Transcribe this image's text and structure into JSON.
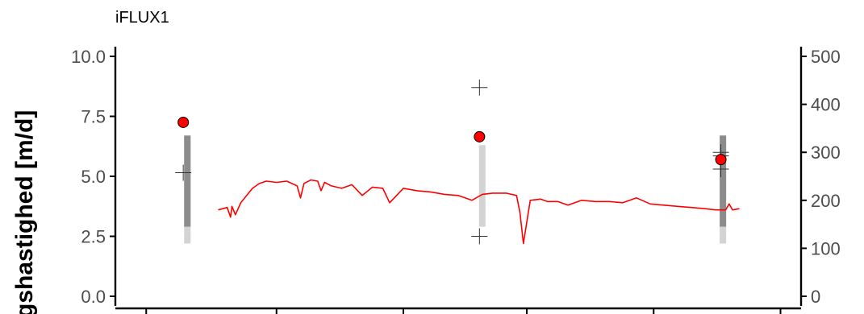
{
  "chart_data": {
    "type": "line",
    "title": "iFLUX1",
    "ylabel": "gshastighed [m/d]",
    "ylim": [
      0,
      10
    ],
    "yticks": [
      "0.0",
      "2.5",
      "5.0",
      "7.5",
      "10.0"
    ],
    "y2lim": [
      0,
      500
    ],
    "y2ticks": [
      "0",
      "100",
      "200",
      "300",
      "400",
      "500"
    ],
    "xlim": [
      0,
      1
    ],
    "colors": {
      "line": "#ff0000",
      "point": "#ff0000",
      "bar_light": "#d3d3d3",
      "bar_dark": "#8c8c8c",
      "axis": "#000000"
    },
    "series": [
      {
        "type": "line",
        "x": [
          0.15,
          0.163,
          0.168,
          0.17,
          0.175,
          0.183,
          0.2,
          0.21,
          0.22,
          0.235,
          0.25,
          0.265,
          0.27,
          0.275,
          0.285,
          0.295,
          0.3,
          0.305,
          0.315,
          0.33,
          0.345,
          0.36,
          0.375,
          0.39,
          0.4,
          0.42,
          0.44,
          0.46,
          0.48,
          0.5,
          0.52,
          0.535,
          0.55,
          0.57,
          0.585,
          0.59,
          0.595,
          0.605,
          0.62,
          0.63,
          0.645,
          0.66,
          0.68,
          0.7,
          0.72,
          0.74,
          0.76,
          0.78,
          0.8,
          0.82,
          0.84,
          0.86,
          0.875,
          0.89,
          0.895,
          0.9,
          0.91
        ],
        "y": [
          3.6,
          3.7,
          3.3,
          3.75,
          3.4,
          3.9,
          4.5,
          4.7,
          4.8,
          4.75,
          4.8,
          4.6,
          4.1,
          4.7,
          4.85,
          4.8,
          4.4,
          4.75,
          4.6,
          4.5,
          4.65,
          4.2,
          4.55,
          4.5,
          3.9,
          4.5,
          4.4,
          4.35,
          4.25,
          4.2,
          4.0,
          4.25,
          4.3,
          4.3,
          4.2,
          3.5,
          2.2,
          4.0,
          4.05,
          3.95,
          3.95,
          3.8,
          4.0,
          3.95,
          3.95,
          3.9,
          4.1,
          3.85,
          3.8,
          3.75,
          3.7,
          3.65,
          3.6,
          3.6,
          3.85,
          3.6,
          3.65
        ]
      },
      {
        "type": "point",
        "x": [
          0.099,
          0.531,
          0.883
        ],
        "y": [
          7.25,
          6.65,
          5.7
        ]
      },
      {
        "type": "cross",
        "x": [
          0.099,
          0.531,
          0.531,
          0.883,
          0.883,
          0.883
        ],
        "y": [
          5.15,
          8.7,
          2.5,
          6.0,
          5.3,
          5.85
        ]
      },
      {
        "type": "range_bar_light",
        "x": [
          0.105,
          0.535,
          0.886
        ],
        "ymin": [
          2.2,
          2.9,
          2.2
        ],
        "ymax": [
          6.7,
          6.3,
          6.7
        ]
      },
      {
        "type": "range_bar_dark",
        "x": [
          0.105,
          0.886
        ],
        "ymin": [
          2.9,
          2.9
        ],
        "ymax": [
          6.7,
          6.7
        ]
      }
    ]
  }
}
